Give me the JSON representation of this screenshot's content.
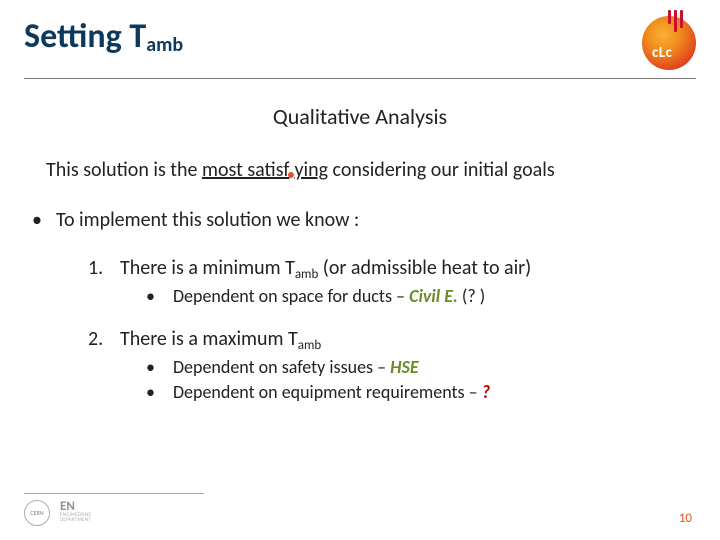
{
  "title_main": "Setting T",
  "title_sub": "amb",
  "logo_text": "cLc",
  "subtitle": "Qualitative Analysis",
  "satisfying_pre": "This solution is the ",
  "satisfying_u1": "most satisf",
  "satisfying_u2": "ying",
  "satisfying_post": " considering our initial goals",
  "bullet_main": "To implement this solution we know :",
  "items": [
    {
      "n": "1.",
      "text_pre": "There is a minimum T",
      "text_sub": "amb",
      "text_post": " (or admissible heat to air)",
      "subs": [
        {
          "pre": "Dependent on space for ducts – ",
          "tag": "Civil E.",
          "tag_class": "civil",
          "post": " (? )"
        }
      ]
    },
    {
      "n": "2.",
      "text_pre": "There is a maximum T",
      "text_sub": "amb",
      "text_post": "",
      "subs": [
        {
          "pre": "Dependent on safety issues – ",
          "tag": "HSE",
          "tag_class": "hse",
          "post": ""
        },
        {
          "pre": "Dependent on equipment requirements – ",
          "tag": "?",
          "tag_class": "qm",
          "post": ""
        }
      ]
    }
  ],
  "footer_cern": "CERN",
  "footer_en": "EN",
  "footer_dep": "ENGINEERING DEPARTMENT",
  "page_number": "10",
  "colors": {
    "title": "#0d3a5c",
    "accent": "#e5541e",
    "green": "#6b8e23",
    "red": "#c00000"
  }
}
